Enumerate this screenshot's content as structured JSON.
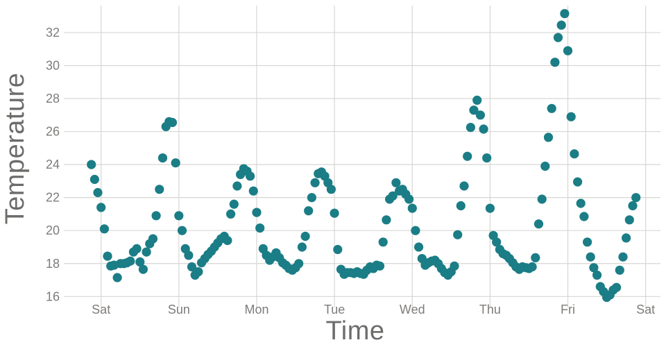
{
  "chart": {
    "xlabel": "Time",
    "ylabel": "Temperature"
  },
  "chart_data": {
    "type": "scatter",
    "title": "",
    "xlabel": "Time",
    "ylabel": "Temperature",
    "legend": "none",
    "grid": true,
    "background_color": "#ffffff",
    "point_color": "#1b7d86",
    "grid_color": "#d8d6d4",
    "tick_text_color": "#7e7c7a",
    "axis_title_color": "#6e6c6a",
    "x_axis": {
      "tick_labels": [
        "Sat",
        "Sun",
        "Mon",
        "Tue",
        "Wed",
        "Thu",
        "Fri",
        "Sat"
      ],
      "tick_positions_days": [
        0,
        1,
        2,
        3,
        4,
        5,
        6,
        7
      ]
    },
    "y_axis": {
      "ticks": [
        16,
        18,
        20,
        22,
        24,
        26,
        28,
        30,
        32
      ],
      "range": [
        15.6,
        33.6
      ]
    },
    "series": [
      {
        "name": "Temperature",
        "sampling": "hourly",
        "first_point_day_offset": -0.125,
        "step_days": 0.0416667,
        "values": [
          24.0,
          23.1,
          22.3,
          21.4,
          20.1,
          18.45,
          17.85,
          17.9,
          17.15,
          18.0,
          18.0,
          18.05,
          18.15,
          18.7,
          18.9,
          18.1,
          17.65,
          18.7,
          19.2,
          19.5,
          20.9,
          22.5,
          24.4,
          26.3,
          26.6,
          26.55,
          24.1,
          20.9,
          20.0,
          18.9,
          18.5,
          17.8,
          17.3,
          17.5,
          18.05,
          18.3,
          18.55,
          18.75,
          19.0,
          19.25,
          19.5,
          19.65,
          19.4,
          21.0,
          21.6,
          22.7,
          23.4,
          23.75,
          23.6,
          23.3,
          22.4,
          21.1,
          20.15,
          18.9,
          18.5,
          18.2,
          18.4,
          18.65,
          18.35,
          18.05,
          17.9,
          17.7,
          17.6,
          17.75,
          18.0,
          19.0,
          19.65,
          21.2,
          22.0,
          22.9,
          23.45,
          23.55,
          23.3,
          22.9,
          22.5,
          21.05,
          18.85,
          17.65,
          17.35,
          17.45,
          17.45,
          17.4,
          17.5,
          17.4,
          17.35,
          17.6,
          17.8,
          17.7,
          17.9,
          17.85,
          19.3,
          20.65,
          21.9,
          22.1,
          22.9,
          22.4,
          22.5,
          22.2,
          21.9,
          21.35,
          20.0,
          19.0,
          18.3,
          17.9,
          18.05,
          18.15,
          18.2,
          18.0,
          17.7,
          17.45,
          17.3,
          17.5,
          17.85,
          19.75,
          21.5,
          22.7,
          24.5,
          26.25,
          27.3,
          27.9,
          27.0,
          26.15,
          24.4,
          21.35,
          19.7,
          19.3,
          18.85,
          18.6,
          18.5,
          18.3,
          18.05,
          17.8,
          17.65,
          17.8,
          17.75,
          17.7,
          17.8,
          18.35,
          20.4,
          21.9,
          23.9,
          25.65,
          27.4,
          30.2,
          31.7,
          32.45,
          33.15,
          30.9,
          26.9,
          24.65,
          22.95,
          21.65,
          20.85,
          19.3,
          18.4,
          17.75,
          17.3,
          16.6,
          16.3,
          15.95,
          16.1,
          16.4,
          16.55,
          17.6,
          18.4,
          19.55,
          20.65,
          21.5,
          22.0
        ]
      }
    ]
  }
}
